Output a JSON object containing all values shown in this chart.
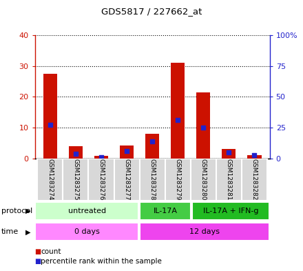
{
  "title": "GDS5817 / 227662_at",
  "samples": [
    "GSM1283274",
    "GSM1283275",
    "GSM1283276",
    "GSM1283277",
    "GSM1283278",
    "GSM1283279",
    "GSM1283280",
    "GSM1283281",
    "GSM1283282"
  ],
  "count_values": [
    27.5,
    4.0,
    0.8,
    4.2,
    8.0,
    31.0,
    21.5,
    3.0,
    1.2
  ],
  "percentile_values_left": [
    11.0,
    1.5,
    0.5,
    2.5,
    5.5,
    12.5,
    10.0,
    2.0,
    1.0
  ],
  "count_color": "#cc1100",
  "percentile_color": "#2222cc",
  "left_ylim": [
    0,
    40
  ],
  "right_ylim": [
    0,
    100
  ],
  "left_yticks": [
    0,
    10,
    20,
    30,
    40
  ],
  "right_yticks": [
    0,
    25,
    50,
    75,
    100
  ],
  "right_yticklabels": [
    "0",
    "25",
    "50",
    "75",
    "100%"
  ],
  "protocol_groups": [
    {
      "label": "untreated",
      "start": 0,
      "end": 4,
      "color": "#ccffcc"
    },
    {
      "label": "IL-17A",
      "start": 4,
      "end": 6,
      "color": "#44cc44"
    },
    {
      "label": "IL-17A + IFN-g",
      "start": 6,
      "end": 9,
      "color": "#22bb22"
    }
  ],
  "time_groups": [
    {
      "label": "0 days",
      "start": 0,
      "end": 4,
      "color": "#ff88ff"
    },
    {
      "label": "12 days",
      "start": 4,
      "end": 9,
      "color": "#ee44ee"
    }
  ],
  "protocol_label": "protocol",
  "time_label": "time",
  "sample_bg_color": "#d8d8d8",
  "plot_bg": "#ffffff",
  "grid_color": "#000000"
}
